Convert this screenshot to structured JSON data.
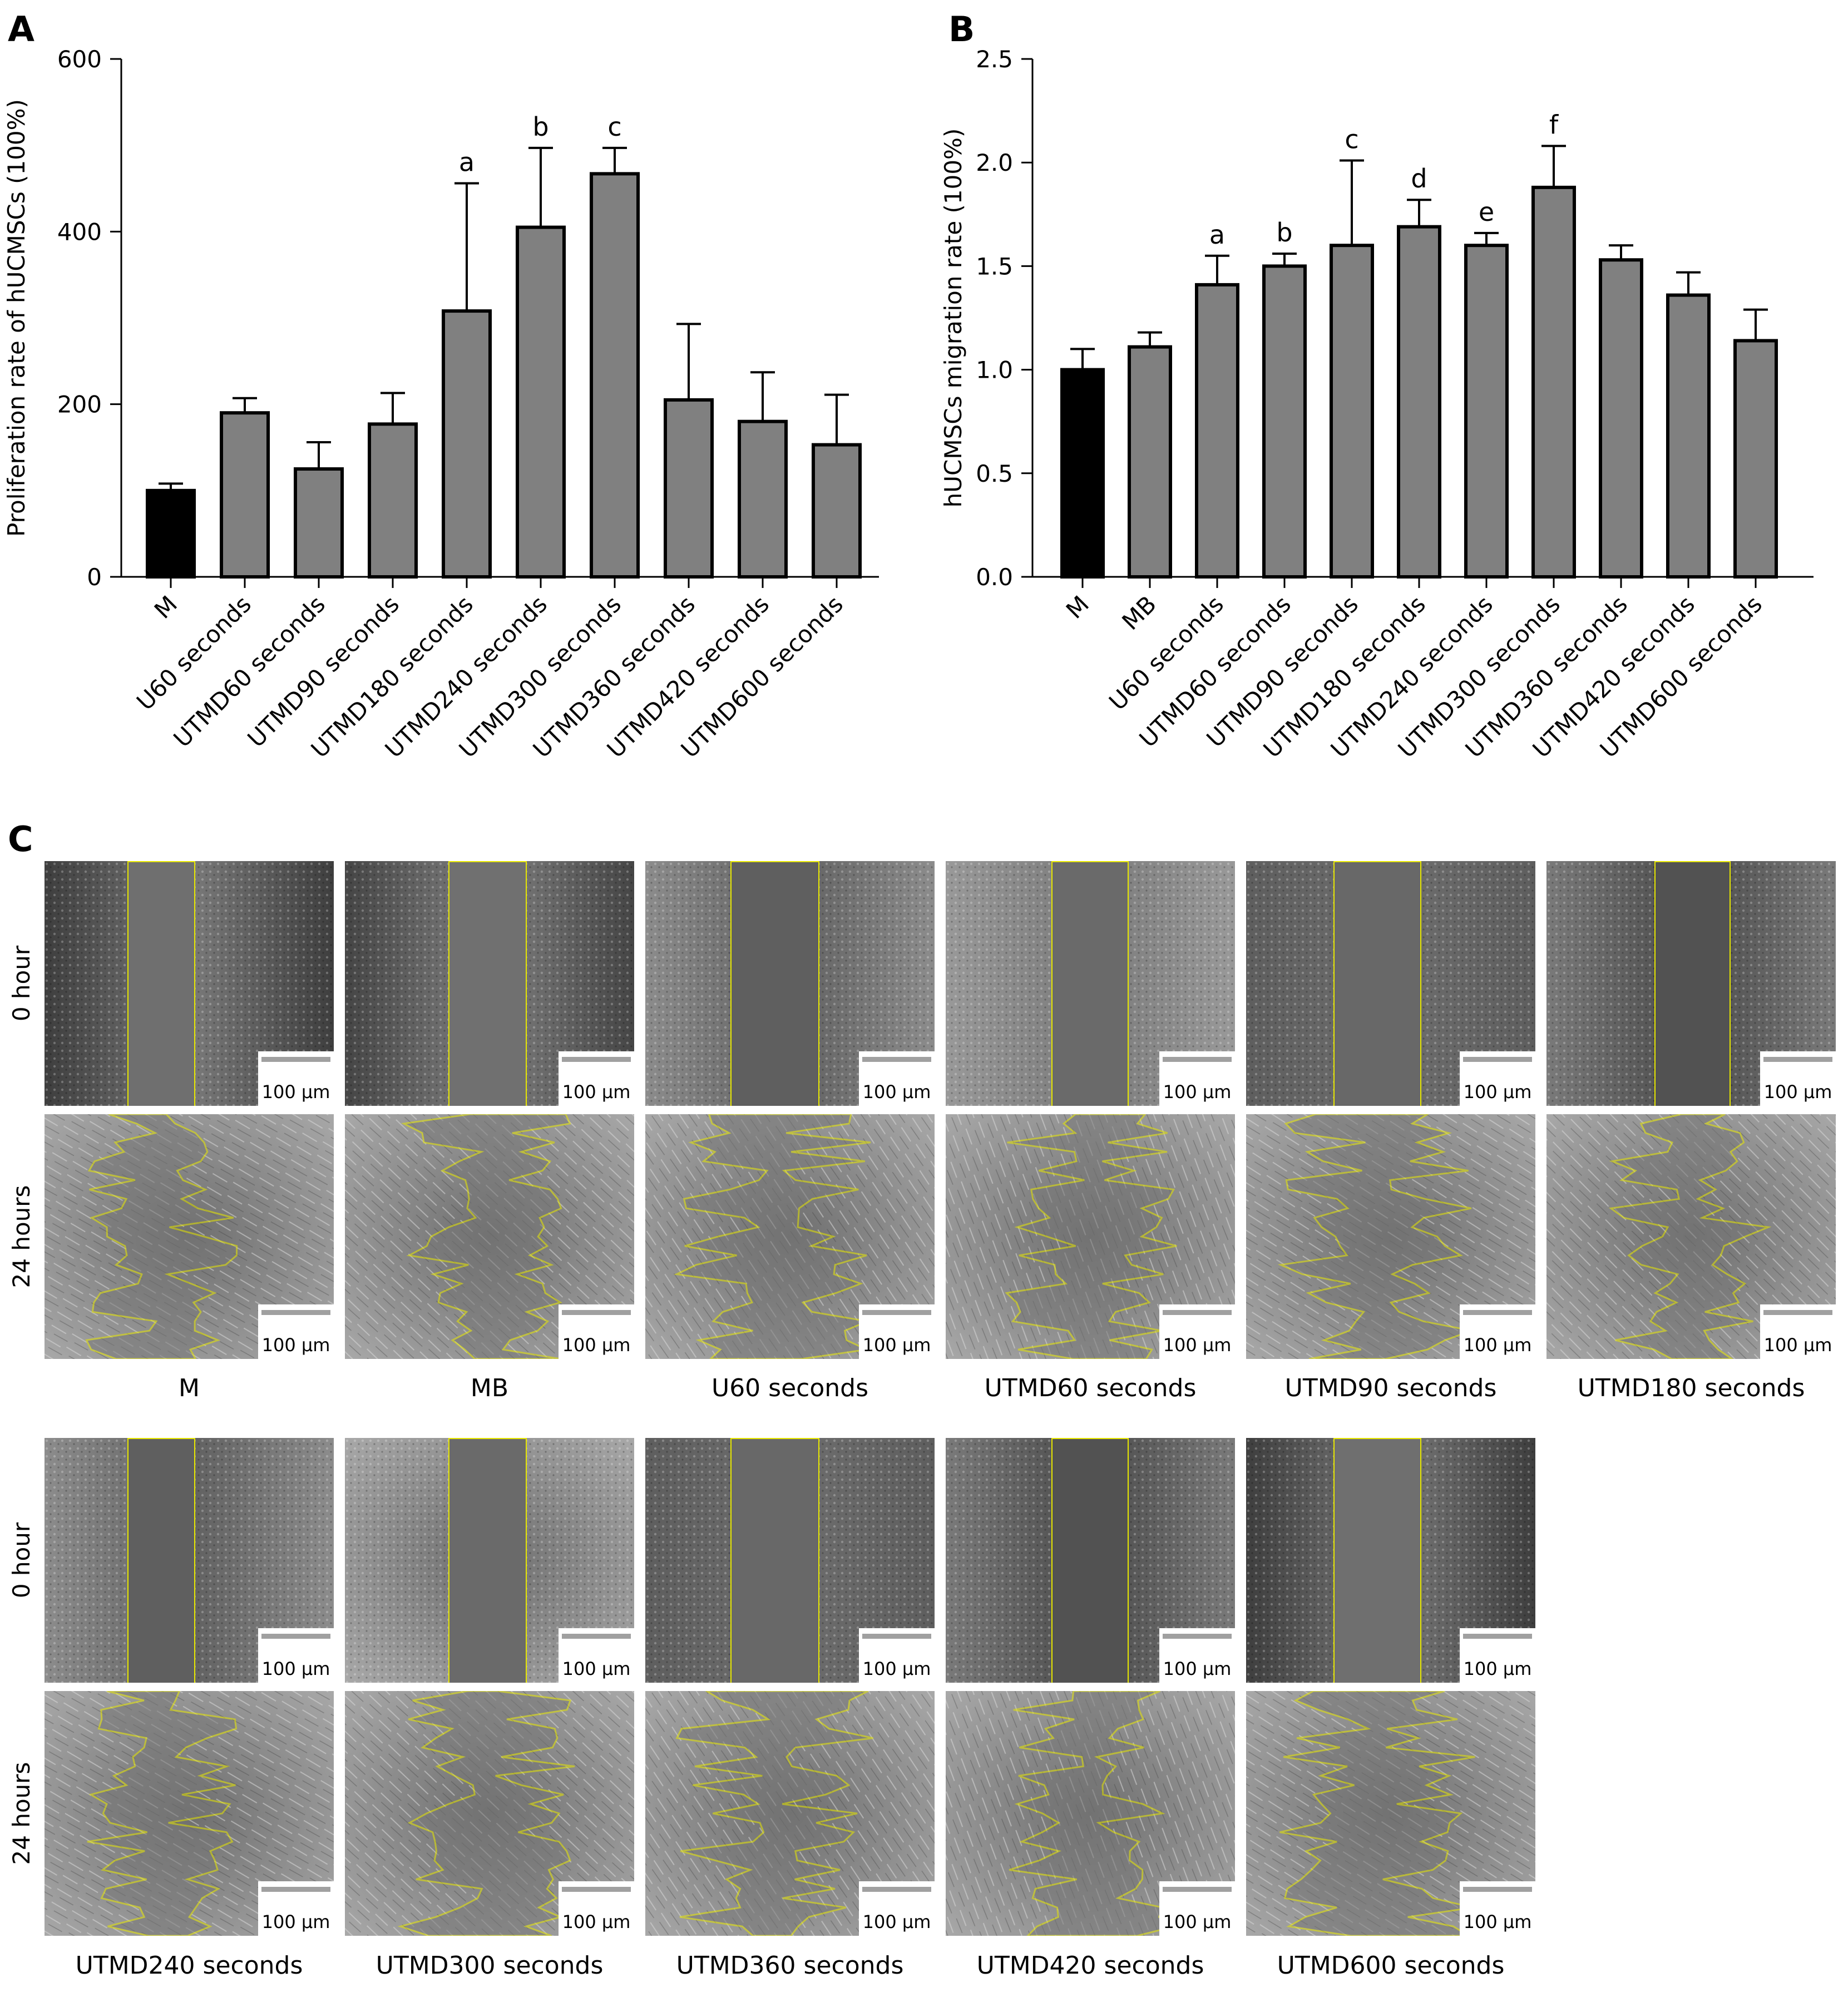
{
  "figure": {
    "panel_labels": [
      "A",
      "B",
      "C"
    ]
  },
  "chart_data": [
    {
      "id": "A",
      "type": "bar",
      "title": "",
      "xlabel": "",
      "ylabel": "Proliferation rate of hUCMSCs (100%)",
      "ylim": [
        0,
        600
      ],
      "yticks": [
        0,
        200,
        400,
        600
      ],
      "grid": false,
      "legend": "none",
      "categories": [
        "M",
        "U60 seconds",
        "UTMD60 seconds",
        "UTMD90 seconds",
        "UTMD180 seconds",
        "UTMD240 seconds",
        "UTMD300 seconds",
        "UTMD360 seconds",
        "UTMD420 seconds",
        "UTMD600 seconds"
      ],
      "values": [
        100,
        190,
        125,
        177,
        308,
        405,
        467,
        205,
        180,
        153
      ],
      "errors": [
        8,
        17,
        31,
        36,
        148,
        92,
        30,
        88,
        57,
        58
      ],
      "annotations": [
        "",
        "",
        "",
        "",
        "a",
        "b",
        "c",
        "",
        "",
        ""
      ],
      "colors": [
        "#000000",
        "#808080",
        "#808080",
        "#808080",
        "#808080",
        "#808080",
        "#808080",
        "#808080",
        "#808080",
        "#808080"
      ]
    },
    {
      "id": "B",
      "type": "bar",
      "title": "",
      "xlabel": "",
      "ylabel": "hUCMSCs migration rate (100%)",
      "ylim": [
        0,
        2.5
      ],
      "yticks": [
        "0.0",
        "0.5",
        "1.0",
        "1.5",
        "2.0",
        "2.5"
      ],
      "grid": false,
      "legend": "none",
      "categories": [
        "M",
        "MB",
        "U60 seconds",
        "UTMD60 seconds",
        "UTMD90 seconds",
        "UTMD180 seconds",
        "UTMD240 seconds",
        "UTMD300 seconds",
        "UTMD360 seconds",
        "UTMD420 seconds",
        "UTMD600 seconds"
      ],
      "values": [
        1.0,
        1.11,
        1.41,
        1.5,
        1.6,
        1.69,
        1.6,
        1.88,
        1.53,
        1.36,
        1.14
      ],
      "errors": [
        0.1,
        0.07,
        0.14,
        0.06,
        0.41,
        0.13,
        0.06,
        0.2,
        0.07,
        0.11,
        0.15
      ],
      "annotations": [
        "",
        "",
        "a",
        "b",
        "c",
        "d",
        "e",
        "f",
        "",
        "",
        ""
      ],
      "colors": [
        "#000000",
        "#808080",
        "#808080",
        "#808080",
        "#808080",
        "#808080",
        "#808080",
        "#808080",
        "#808080",
        "#808080",
        "#808080"
      ]
    }
  ],
  "micrographs": {
    "row_labels": [
      "0 hour",
      "24 hours"
    ],
    "scale_bar": "100 µm",
    "block1_columns": [
      "M",
      "MB",
      "U60 seconds",
      "UTMD60 seconds",
      "UTMD90 seconds",
      "UTMD180 seconds"
    ],
    "block2_columns": [
      "UTMD240 seconds",
      "UTMD300 seconds",
      "UTMD360 seconds",
      "UTMD420 seconds",
      "UTMD600 seconds"
    ]
  }
}
